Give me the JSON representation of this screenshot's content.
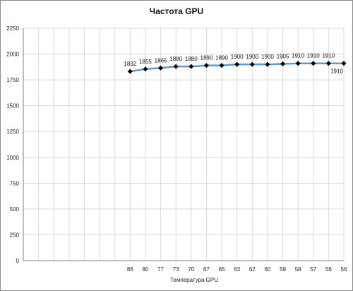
{
  "chart_data": {
    "type": "line",
    "title": "Частота GPU",
    "xlabel": "Температура  GPU",
    "ylabel": "",
    "ylim": [
      0,
      2250
    ],
    "yticks": [
      0,
      250,
      500,
      750,
      1000,
      1250,
      1500,
      1750,
      2000,
      2250
    ],
    "grid": true,
    "legend": "none",
    "line_color": "#5b9bd5",
    "marker_color": "#000000",
    "categories": [
      "",
      "",
      "",
      "",
      "",
      "",
      "86",
      "80",
      "77",
      "73",
      "70",
      "67",
      "65",
      "63",
      "62",
      "60",
      "59",
      "58",
      "57",
      "56",
      "56"
    ],
    "series": [
      {
        "values": [
          null,
          null,
          null,
          null,
          null,
          null,
          1832,
          1855,
          1865,
          1880,
          1880,
          1890,
          1890,
          1900,
          1900,
          1900,
          1905,
          1910,
          1910,
          1910,
          1910
        ]
      }
    ]
  }
}
